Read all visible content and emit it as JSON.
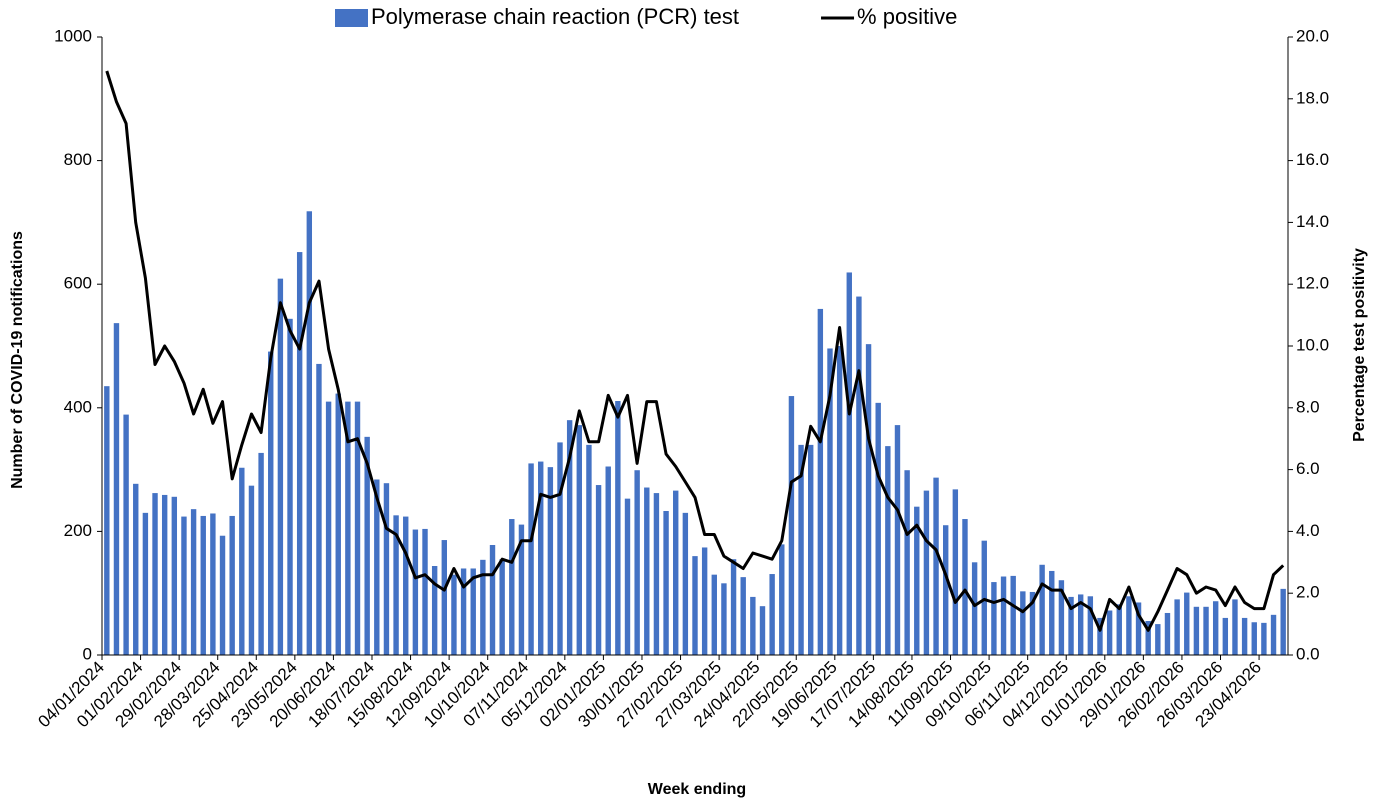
{
  "chart_data": {
    "type": "bar-line",
    "x_label": "Week ending",
    "y_label": "Number of COVID-19 notifications",
    "y2_label": "Percentage test positivity",
    "legend": "top",
    "categories": [
      "04/01/2024",
      null,
      null,
      null,
      "01/02/2024",
      null,
      null,
      null,
      "29/02/2024",
      null,
      null,
      null,
      "28/03/2024",
      null,
      null,
      null,
      "25/04/2024",
      null,
      null,
      null,
      "23/05/2024",
      null,
      null,
      null,
      "20/06/2024",
      null,
      null,
      null,
      "18/07/2024",
      null,
      null,
      null,
      "15/08/2024",
      null,
      null,
      null,
      "12/09/2024",
      null,
      null,
      null,
      "10/10/2024",
      null,
      null,
      null,
      "07/11/2024",
      null,
      null,
      null,
      "05/12/2024",
      null,
      null,
      null,
      "02/01/2025",
      null,
      null,
      null,
      "30/01/2025",
      null,
      null,
      null,
      "27/02/2025",
      null,
      null,
      null,
      "27/03/2025",
      null,
      null,
      null,
      "24/04/2025",
      null,
      null,
      null,
      "22/05/2025",
      null,
      null,
      null,
      "19/06/2025",
      null,
      null,
      null,
      "17/07/2025",
      null,
      null,
      null,
      "14/08/2025",
      null,
      null,
      null,
      "11/09/2025",
      null,
      null,
      null,
      "09/10/2025",
      null,
      null,
      null,
      "06/11/2025",
      null,
      null,
      null,
      "04/12/2025",
      null,
      null,
      null,
      "01/01/2026",
      null,
      null,
      null,
      "29/01/2026",
      null,
      null,
      null,
      "26/02/2026",
      null,
      null,
      null,
      "26/03/2026",
      null,
      null,
      null,
      "23/04/2026",
      null,
      null
    ],
    "series": [
      {
        "name": "Polymerase chain reaction (PCR) test",
        "type": "bar",
        "color": "#4472c4",
        "values": [
          435,
          537,
          389,
          277,
          230,
          262,
          259,
          256,
          224,
          236,
          225,
          229,
          193,
          225,
          303,
          274,
          327,
          491,
          609,
          544,
          652,
          718,
          471,
          410,
          423,
          410,
          410,
          353,
          284,
          278,
          226,
          224,
          203,
          204,
          144,
          186,
          130,
          140,
          140,
          154,
          178,
          155,
          220,
          211,
          310,
          313,
          304,
          344,
          380,
          372,
          340,
          275,
          305,
          411,
          253,
          299,
          271,
          262,
          233,
          266,
          230,
          160,
          174,
          130,
          116,
          155,
          126,
          94,
          79,
          131,
          179,
          419,
          340,
          340,
          560,
          496,
          500,
          619,
          580,
          503,
          408,
          338,
          372,
          299,
          240,
          266,
          287,
          210,
          268,
          220,
          150,
          185,
          118,
          127,
          128,
          103,
          102,
          146,
          136,
          121,
          94,
          98,
          95,
          60,
          72,
          82,
          95,
          85,
          55,
          50,
          68,
          90,
          101,
          78,
          78,
          87,
          60,
          90,
          60,
          53,
          52,
          65,
          107
        ]
      },
      {
        "name": "% positive",
        "type": "line",
        "axis": "y2",
        "color": "#000000",
        "values": [
          18.9,
          17.9,
          17.2,
          14.0,
          12.2,
          9.4,
          10.0,
          9.5,
          8.8,
          7.8,
          8.6,
          7.5,
          8.2,
          5.7,
          6.8,
          7.8,
          7.2,
          9.6,
          11.4,
          10.5,
          9.9,
          11.4,
          12.1,
          9.9,
          8.6,
          6.9,
          7.0,
          6.2,
          5.1,
          4.1,
          3.9,
          3.3,
          2.5,
          2.6,
          2.3,
          2.1,
          2.8,
          2.2,
          2.5,
          2.6,
          2.6,
          3.1,
          3.0,
          3.7,
          3.7,
          5.2,
          5.1,
          5.2,
          6.4,
          7.9,
          6.9,
          6.9,
          8.4,
          7.7,
          8.4,
          6.2,
          8.2,
          8.2,
          6.5,
          6.1,
          5.6,
          5.1,
          3.9,
          3.9,
          3.2,
          3.0,
          2.8,
          3.3,
          3.2,
          3.1,
          3.7,
          5.6,
          5.8,
          7.4,
          6.9,
          8.4,
          10.6,
          7.8,
          9.2,
          7.0,
          5.8,
          5.1,
          4.7,
          3.9,
          4.2,
          3.7,
          3.4,
          2.6,
          1.7,
          2.1,
          1.6,
          1.8,
          1.7,
          1.8,
          1.6,
          1.4,
          1.7,
          2.3,
          2.1,
          2.1,
          1.5,
          1.7,
          1.5,
          0.8,
          1.8,
          1.5,
          2.2,
          1.3,
          0.8,
          1.4,
          2.1,
          2.8,
          2.6,
          2.0,
          2.2,
          2.1,
          1.6,
          2.2,
          1.7,
          1.5,
          1.5,
          2.6,
          2.9
        ]
      }
    ],
    "ylim": [
      0,
      1000
    ],
    "yticks": [
      0,
      200,
      400,
      600,
      800,
      1000
    ],
    "y2lim": [
      0,
      20
    ],
    "y2ticks": [
      {
        "value": 0,
        "label": "0.0"
      },
      {
        "value": 2,
        "label": "2.0"
      },
      {
        "value": 4,
        "label": "4.0"
      },
      {
        "value": 6,
        "label": "6.0"
      },
      {
        "value": 8,
        "label": "8.0"
      },
      {
        "value": 10,
        "label": "10.0"
      },
      {
        "value": 12,
        "label": "12.0"
      },
      {
        "value": 14,
        "label": "14.0"
      },
      {
        "value": 16,
        "label": "16.0"
      },
      {
        "value": 18,
        "label": "18.0"
      },
      {
        "value": 20,
        "label": "20.0"
      }
    ]
  }
}
